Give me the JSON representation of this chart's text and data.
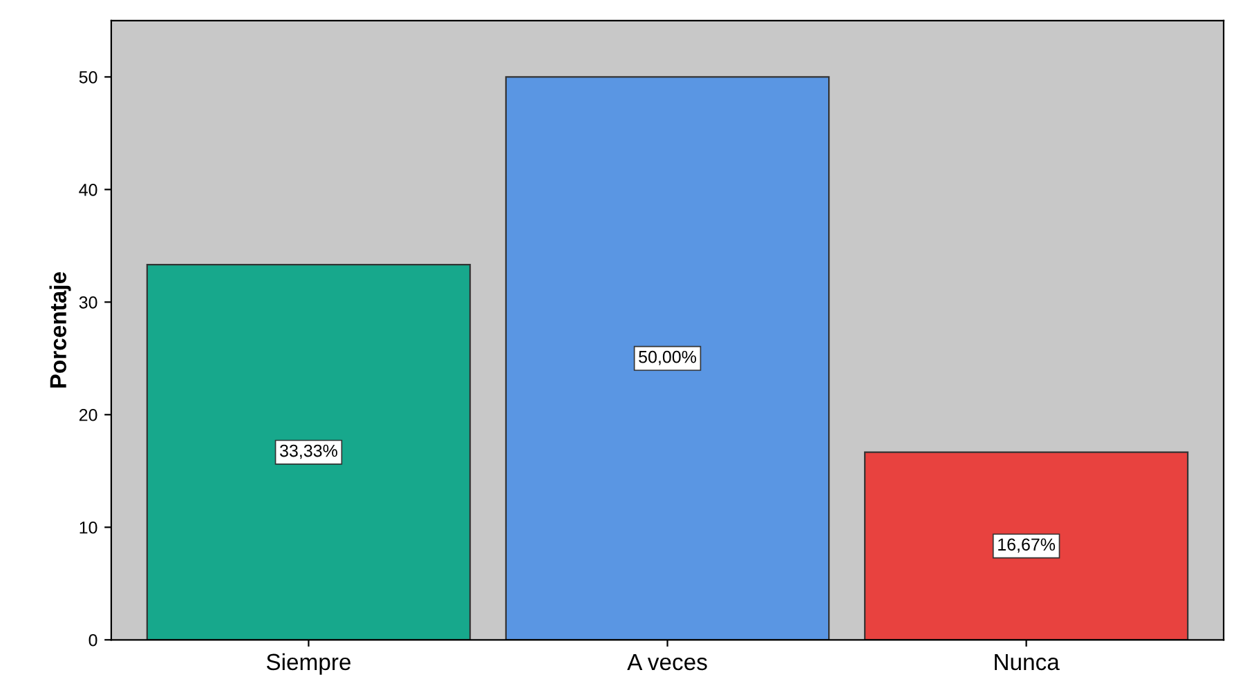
{
  "chart_data": {
    "type": "bar",
    "ylabel": "Porcentaje",
    "categories": [
      "Siempre",
      "A veces",
      "Nunca"
    ],
    "values": [
      33.33,
      50.0,
      16.67
    ],
    "colors": [
      "#17a88c",
      "#5a96e3",
      "#e8423f"
    ],
    "value_labels": [
      "33,33%",
      "50,00%",
      "16,67%"
    ],
    "ylim": [
      0,
      55
    ],
    "yticks": [
      0,
      10,
      20,
      30,
      40,
      50
    ],
    "grid": false
  }
}
